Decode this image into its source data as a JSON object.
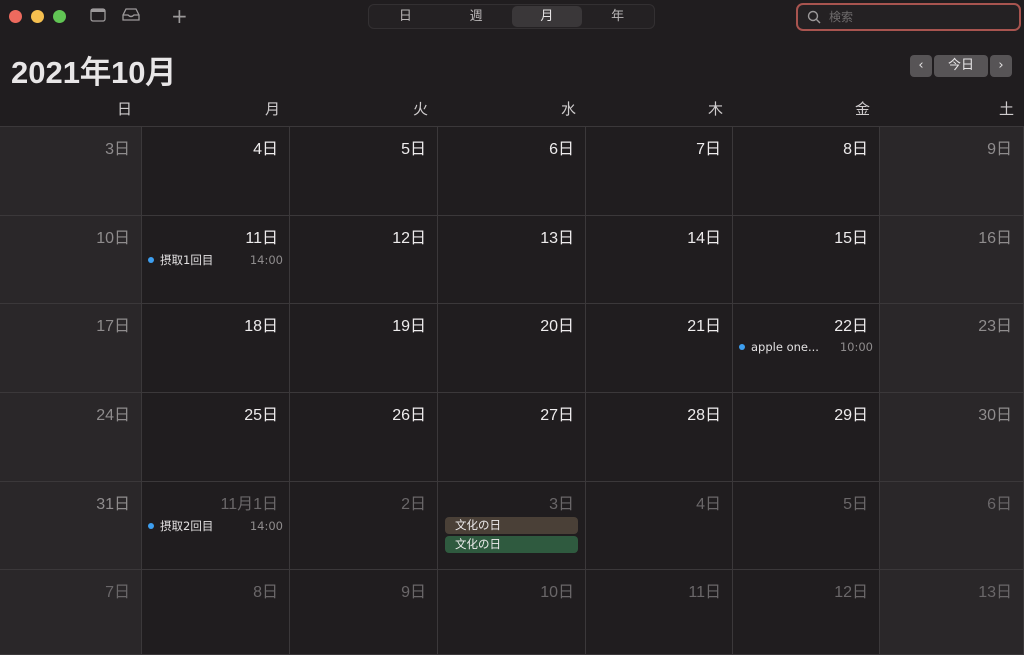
{
  "window": {
    "lights": [
      "#ed6a5e",
      "#f5bf4f",
      "#61c554"
    ],
    "icons": [
      "calendar-list-icon",
      "inbox-icon",
      "add-icon"
    ]
  },
  "view_switcher": {
    "items": [
      "日",
      "週",
      "月",
      "年"
    ],
    "active": 2
  },
  "search": {
    "placeholder": "検索",
    "value": ""
  },
  "title": "2021年10月",
  "nav": {
    "prev": "‹",
    "today": "今日",
    "next": "›"
  },
  "weekdays": [
    "日",
    "月",
    "火",
    "水",
    "木",
    "金",
    "土"
  ],
  "weeks": [
    [
      {
        "d": "3日"
      },
      {
        "d": "4日"
      },
      {
        "d": "5日"
      },
      {
        "d": "6日"
      },
      {
        "d": "7日"
      },
      {
        "d": "8日"
      },
      {
        "d": "9日"
      }
    ],
    [
      {
        "d": "10日"
      },
      {
        "d": "11日",
        "events": [
          {
            "title": "摂取1回目",
            "time": "14:00"
          }
        ]
      },
      {
        "d": "12日"
      },
      {
        "d": "13日"
      },
      {
        "d": "14日"
      },
      {
        "d": "15日"
      },
      {
        "d": "16日"
      }
    ],
    [
      {
        "d": "17日"
      },
      {
        "d": "18日"
      },
      {
        "d": "19日"
      },
      {
        "d": "20日"
      },
      {
        "d": "21日"
      },
      {
        "d": "22日",
        "events": [
          {
            "title": "apple one...",
            "time": "10:00"
          }
        ]
      },
      {
        "d": "23日"
      }
    ],
    [
      {
        "d": "24日"
      },
      {
        "d": "25日"
      },
      {
        "d": "26日"
      },
      {
        "d": "27日"
      },
      {
        "d": "28日"
      },
      {
        "d": "29日"
      },
      {
        "d": "30日"
      }
    ],
    [
      {
        "d": "31日"
      },
      {
        "d": "11月1日",
        "om": true,
        "events": [
          {
            "title": "摂取2回目",
            "time": "14:00"
          }
        ]
      },
      {
        "d": "2日",
        "om": true
      },
      {
        "d": "3日",
        "om": true,
        "allday": [
          {
            "title": "文化の日",
            "color": "#4a4037"
          },
          {
            "title": "文化の日",
            "color": "#2f5a3f"
          }
        ]
      },
      {
        "d": "4日",
        "om": true
      },
      {
        "d": "5日",
        "om": true
      },
      {
        "d": "6日",
        "om": true
      }
    ],
    [
      {
        "d": "7日",
        "om": true
      },
      {
        "d": "8日",
        "om": true
      },
      {
        "d": "9日",
        "om": true
      },
      {
        "d": "10日",
        "om": true
      },
      {
        "d": "11日",
        "om": true
      },
      {
        "d": "12日",
        "om": true
      },
      {
        "d": "13日",
        "om": true
      }
    ]
  ],
  "event_dot_color": "#3d9ff0"
}
